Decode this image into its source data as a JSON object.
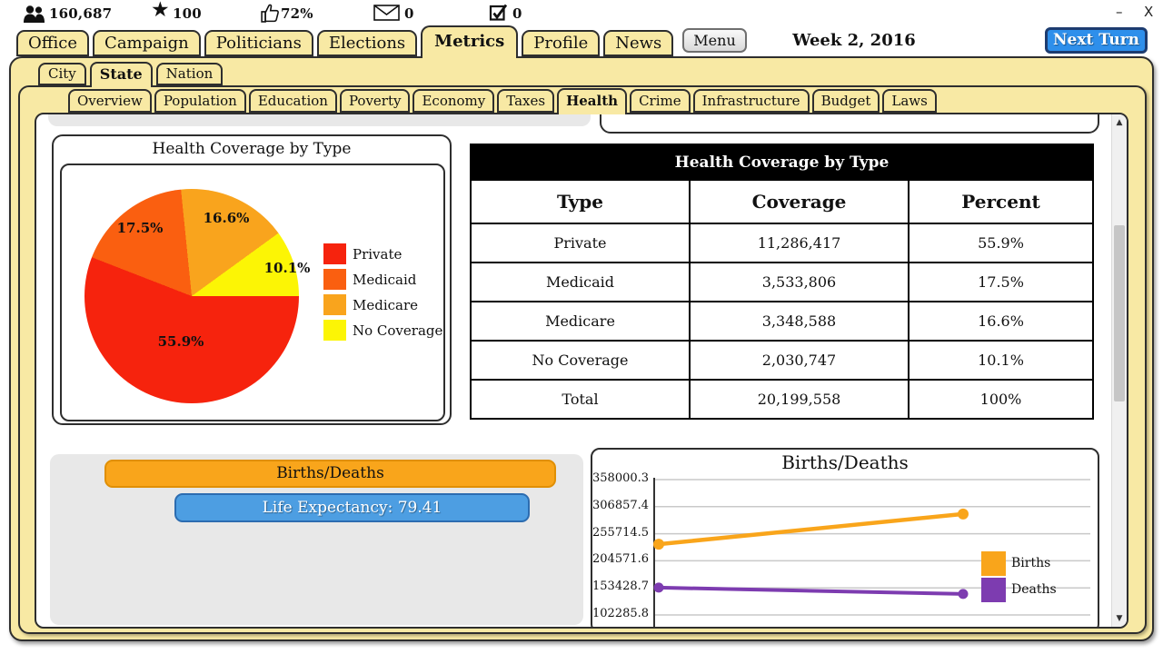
{
  "window": {
    "minimize": "–",
    "close": "X"
  },
  "stats": {
    "population": {
      "icon": "people-icon",
      "value": "160,687"
    },
    "rating": {
      "icon": "star-icon",
      "value": "100"
    },
    "approval": {
      "icon": "thumbs-up-icon",
      "value": "72%"
    },
    "messages": {
      "icon": "envelope-icon",
      "value": "0"
    },
    "tasks": {
      "icon": "checkbox-icon",
      "value": "0"
    }
  },
  "nav": {
    "tabs": [
      "Office",
      "Campaign",
      "Politicians",
      "Elections",
      "Metrics",
      "Profile",
      "News"
    ],
    "active_tab": "Metrics",
    "menu_label": "Menu",
    "date": "Week 2, 2016",
    "next_turn_label": "Next Turn"
  },
  "region_tabs": {
    "items": [
      "City",
      "State",
      "Nation"
    ],
    "active": "State"
  },
  "metric_tabs": {
    "items": [
      "Overview",
      "Population",
      "Education",
      "Poverty",
      "Economy",
      "Taxes",
      "Health",
      "Crime",
      "Infrastructure",
      "Budget",
      "Laws"
    ],
    "active": "Health"
  },
  "coverage_table": {
    "title": "Health Coverage by Type",
    "columns": [
      "Type",
      "Coverage",
      "Percent"
    ],
    "rows": [
      {
        "type": "Private",
        "coverage": "11,286,417",
        "percent": "55.9%"
      },
      {
        "type": "Medicaid",
        "coverage": "3,533,806",
        "percent": "17.5%"
      },
      {
        "type": "Medicare",
        "coverage": "3,348,588",
        "percent": "16.6%"
      },
      {
        "type": "No Coverage",
        "coverage": "2,030,747",
        "percent": "10.1%"
      },
      {
        "type": "Total",
        "coverage": "20,199,558",
        "percent": "100%"
      }
    ]
  },
  "births_panel": {
    "title_button": "Births/Deaths",
    "life_expectancy_button": "Life Expectancy: 79.41"
  },
  "chart_data": [
    {
      "type": "pie",
      "title": "Health Coverage by Type",
      "labels": [
        "Private",
        "Medicaid",
        "Medicare",
        "No Coverage"
      ],
      "values": [
        55.9,
        17.5,
        16.6,
        10.1
      ],
      "pct_labels": [
        "55.9%",
        "17.5%",
        "16.6%",
        "10.1%"
      ],
      "colors": [
        "#f6230d",
        "#fa5f10",
        "#f9a41d",
        "#fcf505"
      ],
      "start_angle_deg": 0,
      "direction": "clockwise",
      "legend_position": "right"
    },
    {
      "type": "line",
      "title": "Births/Deaths",
      "x": [
        1,
        2
      ],
      "series": [
        {
          "name": "Births",
          "color": "#f9a51b",
          "values": [
            236000,
            293000
          ]
        },
        {
          "name": "Deaths",
          "color": "#7d3cb0",
          "values": [
            154000,
            142000
          ]
        }
      ],
      "yticks": [
        358000.3,
        306857.4,
        255714.5,
        204571.6,
        153428.7,
        102285.8
      ],
      "ylim": [
        102285.8,
        358000.3
      ],
      "grid": true,
      "legend_position": "right"
    }
  ],
  "theme": {
    "tab_fill": "#f8e9a4",
    "panel_border": "#2e2e2e",
    "table_header_bg": "#000000",
    "gray_panel": "#e8e8e8",
    "orange_button": "#f9a51b",
    "blue_button": "#4d9ee2",
    "next_turn_blue": "#2e8feb"
  }
}
